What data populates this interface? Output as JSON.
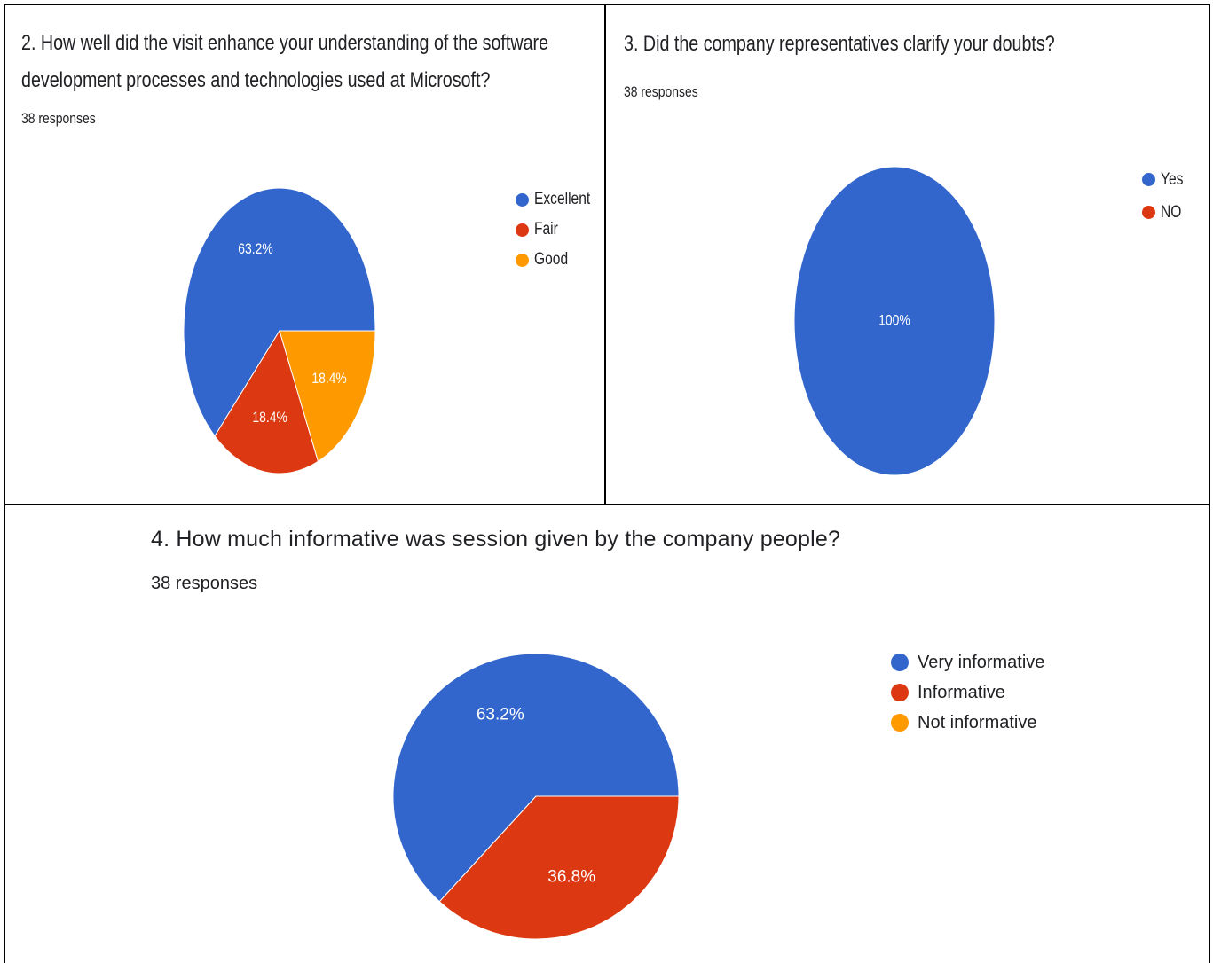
{
  "chart_data": [
    {
      "type": "pie",
      "title": "2. How well did the visit enhance your understanding of the software development processes and technologies used at Microsoft?",
      "subtitle": "38 responses",
      "categories": [
        "Excellent",
        "Fair",
        "Good"
      ],
      "values": [
        63.2,
        18.4,
        18.4
      ],
      "data_labels": [
        "63.2%",
        "18.4%",
        "18.4%"
      ],
      "colors": [
        "#3366cc",
        "#dc3912",
        "#ff9900"
      ],
      "legend_position": "right"
    },
    {
      "type": "pie",
      "title": "3.  Did the company representatives clarify your doubts?",
      "subtitle": "38 responses",
      "categories": [
        "Yes",
        "NO"
      ],
      "values": [
        100,
        0
      ],
      "data_labels": [
        "100%",
        ""
      ],
      "colors": [
        "#3366cc",
        "#dc3912"
      ],
      "legend_position": "right"
    },
    {
      "type": "pie",
      "title": "4. How much informative was session  given by the company people?",
      "subtitle": "38 responses",
      "categories": [
        "Very informative",
        "Informative",
        "Not informative"
      ],
      "values": [
        63.2,
        36.8,
        0
      ],
      "data_labels": [
        "63.2%",
        "36.8%",
        ""
      ],
      "colors": [
        "#3366cc",
        "#dc3912",
        "#ff9900"
      ],
      "legend_position": "right"
    }
  ]
}
